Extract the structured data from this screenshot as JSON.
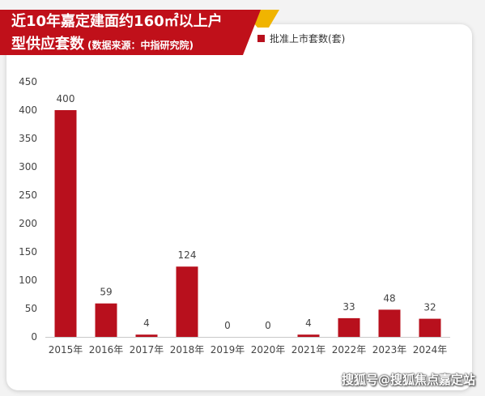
{
  "title": {
    "line1": "近10年嘉定建面约160㎡以上户",
    "line2": "型供应套数",
    "source": "(数据来源：中指研究院)"
  },
  "colors": {
    "bar": "#b8101d",
    "banner": "#c0101a",
    "banner_accent": "#f0b400"
  },
  "watermark": "搜狐号@搜狐焦点嘉定站",
  "chart_data": {
    "type": "bar",
    "categories": [
      "2015年",
      "2016年",
      "2017年",
      "2018年",
      "2019年",
      "2020年",
      "2021年",
      "2022年",
      "2023年",
      "2024年"
    ],
    "series": [
      {
        "name": "批准上市套数(套)",
        "values": [
          400,
          59,
          4,
          124,
          0,
          0,
          4,
          33,
          48,
          32
        ]
      }
    ],
    "ylim": [
      0,
      450
    ],
    "yticks": [
      0,
      50,
      100,
      150,
      200,
      250,
      300,
      350,
      400,
      450
    ],
    "xlabel": "",
    "ylabel": "",
    "grid": false,
    "legend_position": "top-right",
    "data_labels": true
  }
}
